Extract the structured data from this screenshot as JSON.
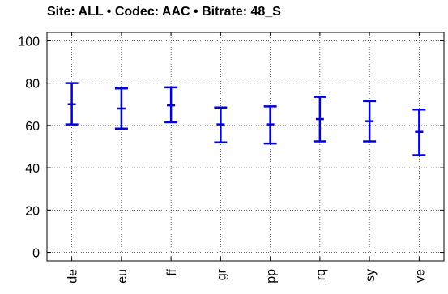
{
  "chart_data": {
    "type": "errorbar",
    "title": "Site: ALL • Codec: AAC • Bitrate: 48_S",
    "xlabel": "",
    "ylabel": "",
    "categories": [
      "de",
      "eu",
      "ff",
      "gr",
      "pp",
      "rq",
      "sy",
      "ve"
    ],
    "series": [
      {
        "mean": [
          70,
          68,
          69.5,
          60.5,
          60.5,
          63,
          62,
          57
        ],
        "lower": [
          60.5,
          58.5,
          61.5,
          52,
          51.5,
          52.5,
          52.5,
          46
        ],
        "upper": [
          80,
          77.5,
          78,
          68.5,
          69,
          73.5,
          71.5,
          67.5
        ]
      }
    ],
    "ylim": [
      -4,
      104
    ],
    "yticks": [
      0,
      20,
      40,
      60,
      80,
      100
    ],
    "grid": true,
    "colors": {
      "series": "#0000dd",
      "axis": "#000000",
      "grid": "#000000"
    }
  }
}
